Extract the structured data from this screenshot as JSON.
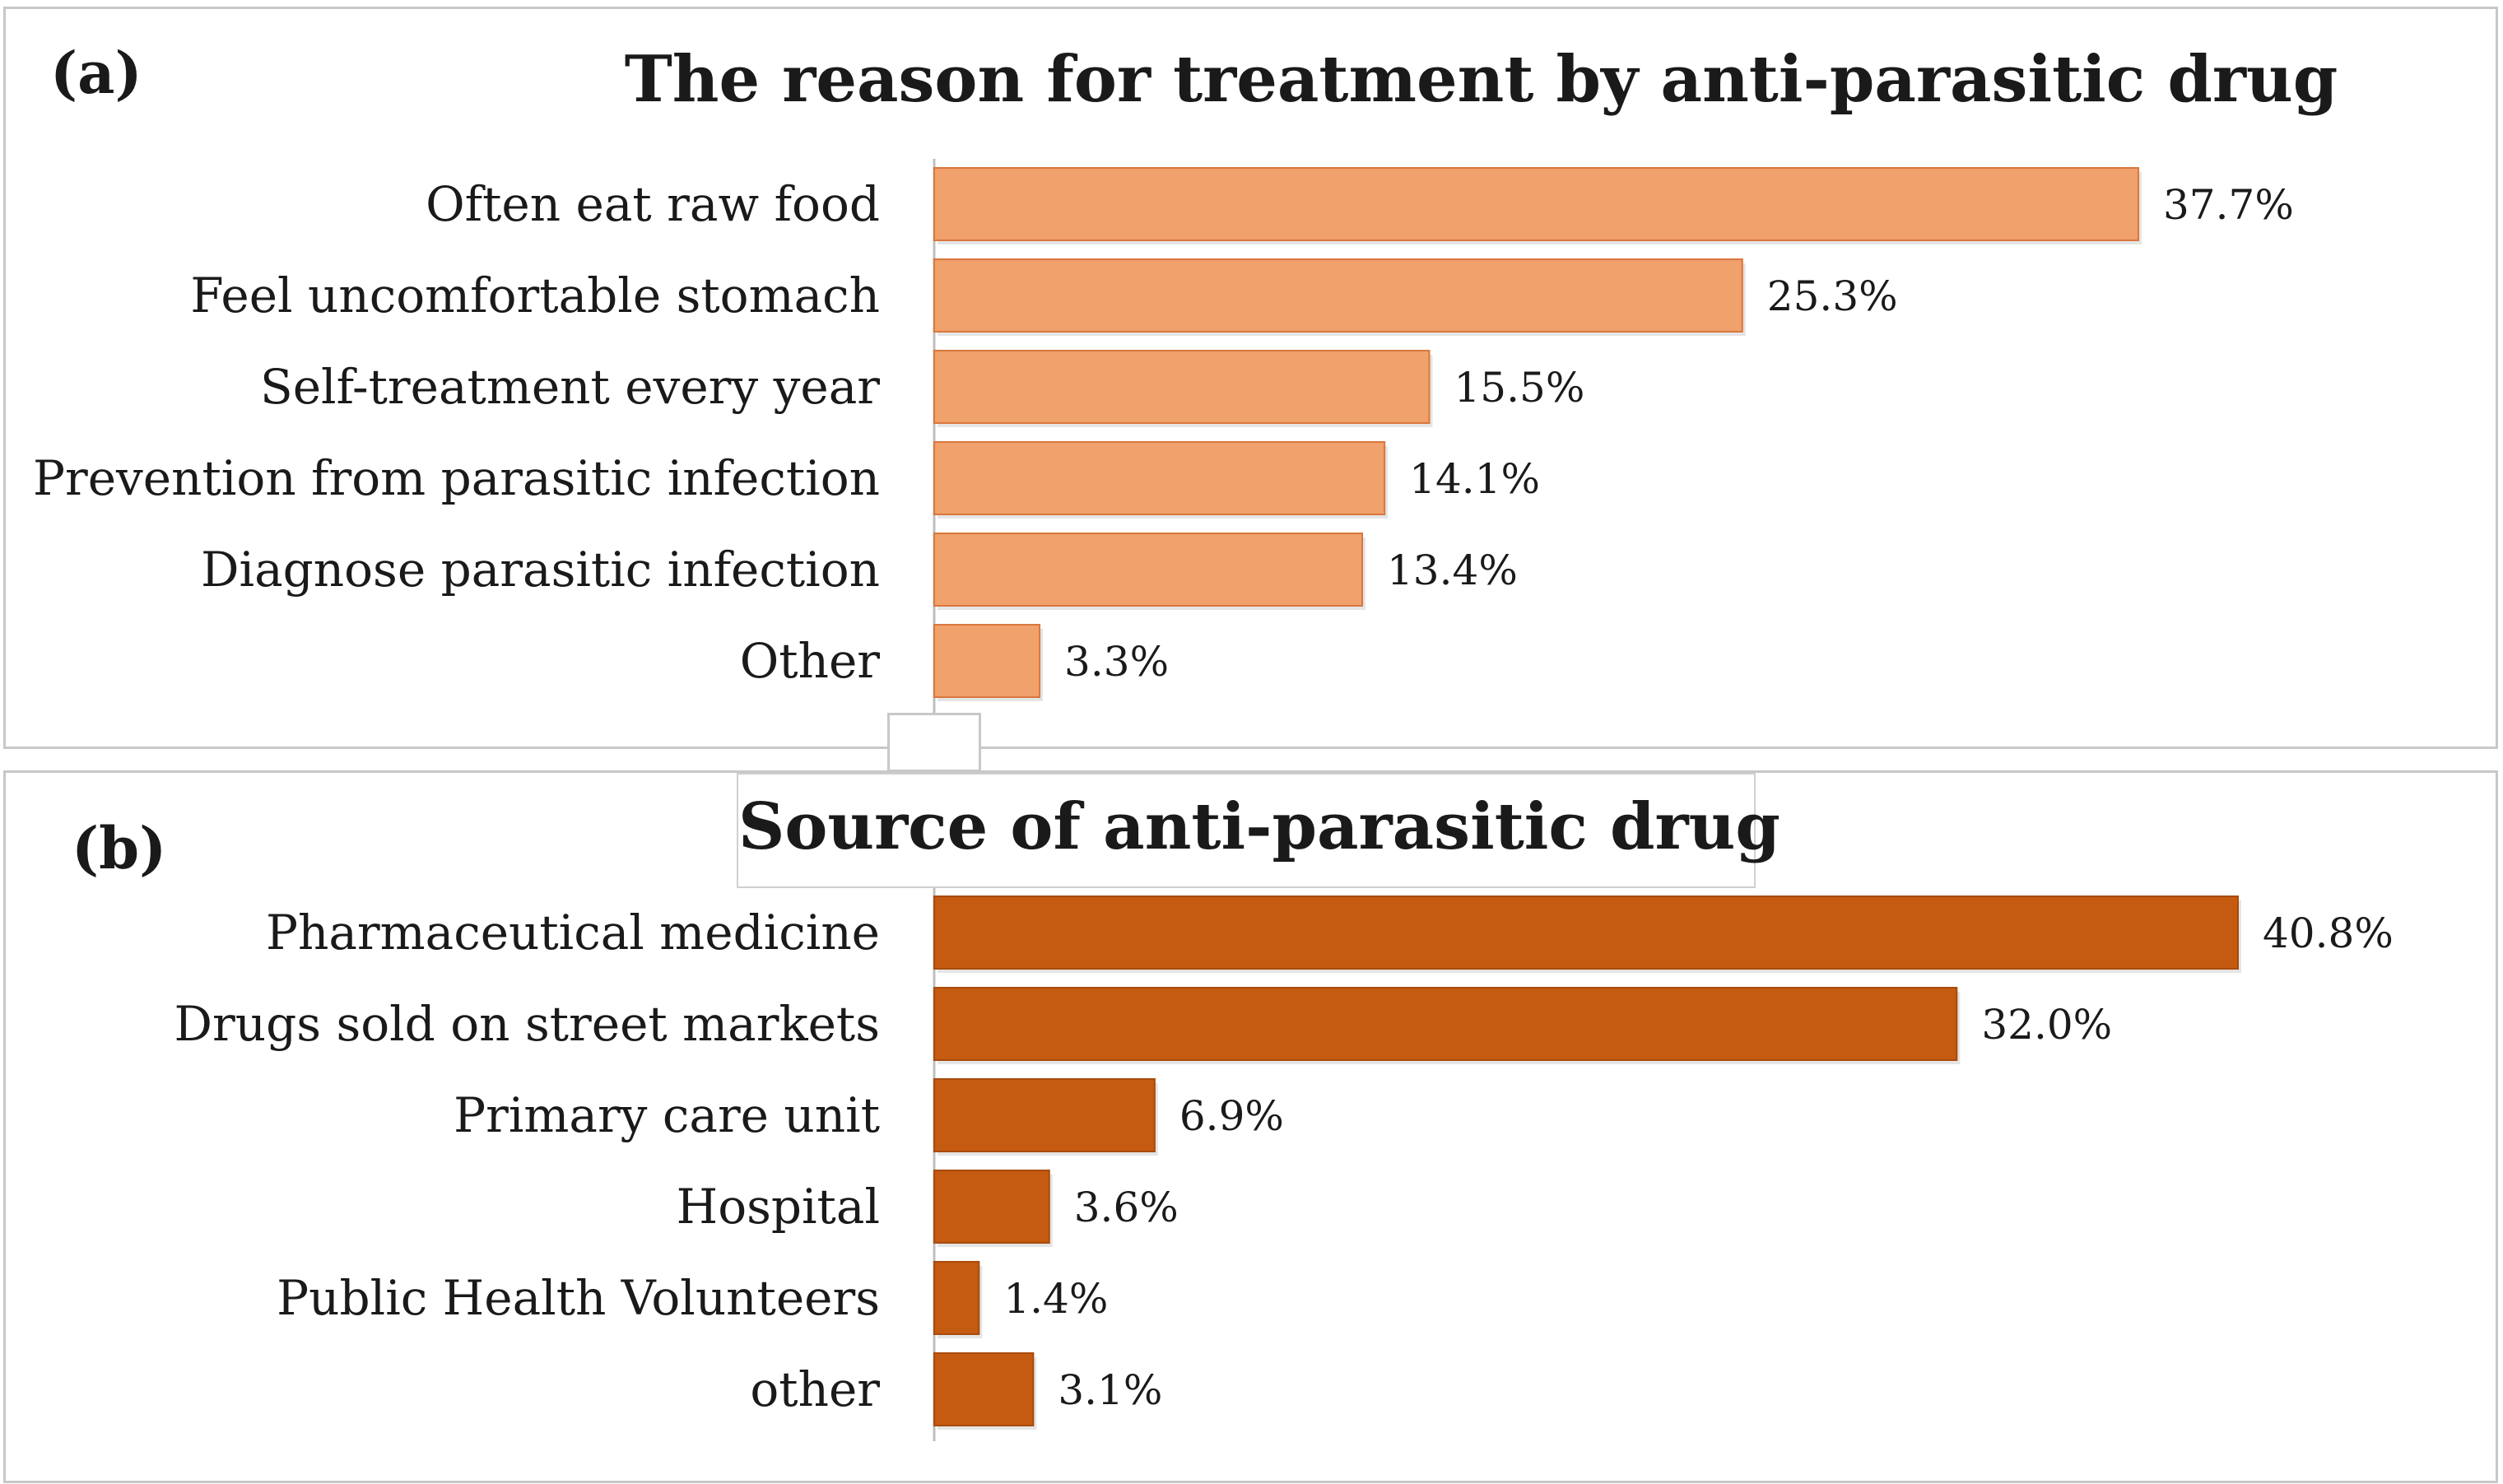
{
  "chart_data": [
    {
      "type": "bar",
      "orientation": "horizontal",
      "panel_label": "(a)",
      "title": "The reason for treatment by anti-parasitic drug",
      "categories": [
        "Often eat raw food",
        "Feel uncomfortable stomach",
        "Self-treatment every year",
        "Prevention from parasitic infection",
        "Diagnose parasitic infection",
        "Other"
      ],
      "values": [
        37.7,
        25.3,
        15.5,
        14.1,
        13.4,
        3.3
      ],
      "value_labels": [
        "37.7%",
        "25.3%",
        "15.5%",
        "14.1%",
        "13.4%",
        "3.3%"
      ],
      "xlim": [
        0,
        45
      ],
      "bar_color": "#f0a16c",
      "bar_edge_color": "#d9773d",
      "xlabel": "",
      "ylabel": ""
    },
    {
      "type": "bar",
      "orientation": "horizontal",
      "panel_label": "(b)",
      "title": "Source of anti-parasitic drug",
      "categories": [
        "Pharmaceutical medicine",
        "Drugs sold on street markets",
        "Primary care unit",
        "Hospital",
        "Public Health Volunteers",
        "other"
      ],
      "values": [
        40.8,
        32.0,
        6.9,
        3.6,
        1.4,
        3.1
      ],
      "value_labels": [
        "40.8%",
        "32.0%",
        "6.9%",
        "3.6%",
        "1.4%",
        "3.1%"
      ],
      "xlim": [
        0,
        45
      ],
      "bar_color": "#c55a11",
      "bar_edge_color": "#a84b0c",
      "xlabel": "",
      "ylabel": ""
    }
  ]
}
